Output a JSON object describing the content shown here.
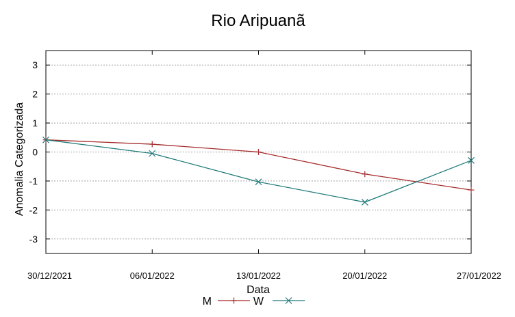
{
  "chart_data": {
    "type": "line",
    "title": "Rio Aripuanã",
    "xlabel": "Data",
    "ylabel": "Anomalia Categorizada",
    "categories": [
      "30/12/2021",
      "06/01/2022",
      "13/01/2022",
      "20/01/2022",
      "27/01/2022"
    ],
    "ylim": [
      -3.5,
      3.5
    ],
    "yticks": [
      3,
      2,
      1,
      0,
      -1,
      -2,
      -3
    ],
    "grid": true,
    "legend_position": "bottom",
    "series": [
      {
        "name": "M",
        "values": [
          0.42,
          0.27,
          0.0,
          -0.76,
          -1.31
        ],
        "color": "#a52a2a",
        "marker": "plus"
      },
      {
        "name": "W",
        "values": [
          0.42,
          -0.05,
          -1.03,
          -1.73,
          -0.29
        ],
        "color": "#1f7a7a",
        "marker": "x"
      }
    ]
  }
}
